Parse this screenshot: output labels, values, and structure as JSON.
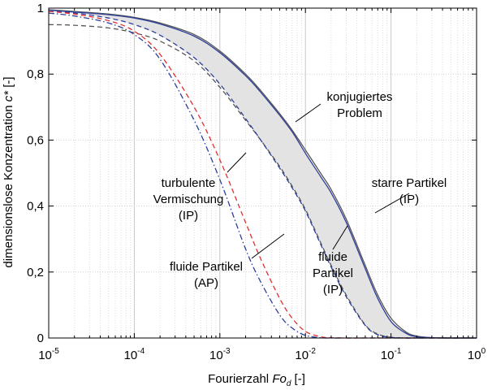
{
  "chart_data": {
    "type": "line",
    "x_scale": "log",
    "xlim": [
      1e-05,
      1
    ],
    "ylim": [
      0,
      1
    ],
    "grid": true,
    "xlabel": {
      "main": "Fourierzahl ",
      "italic": "Fo",
      "sub": "d",
      "unit": " [-]"
    },
    "ylabel": {
      "main": "dimensionslose Konzentration ",
      "italic": "c*",
      "unit": " [-]"
    },
    "x_ticks": [
      {
        "base": "10",
        "exp": "-5"
      },
      {
        "base": "10",
        "exp": "-4"
      },
      {
        "base": "10",
        "exp": "-3"
      },
      {
        "base": "10",
        "exp": "-2"
      },
      {
        "base": "10",
        "exp": "-1"
      },
      {
        "base": "10",
        "exp": "0"
      }
    ],
    "y_ticks": [
      "0",
      "0,2",
      "0,4",
      "0,6",
      "0,8",
      "1"
    ],
    "x": [
      1e-05,
      2e-05,
      5e-05,
      0.0001,
      0.0002,
      0.0005,
      0.001,
      0.002,
      0.003,
      0.005,
      0.007,
      0.01,
      0.015,
      0.02,
      0.03,
      0.05,
      0.07,
      0.1,
      0.15,
      0.2,
      0.3,
      0.5,
      0.7,
      1
    ],
    "series": [
      {
        "key": "starre-ip-upper",
        "style": "solid",
        "color": "#555555",
        "values": [
          0.995,
          0.99,
          0.982,
          0.972,
          0.955,
          0.92,
          0.87,
          0.8,
          0.75,
          0.68,
          0.63,
          0.57,
          0.5,
          0.45,
          0.36,
          0.22,
          0.13,
          0.06,
          0.018,
          0.006,
          0.001,
          0,
          0,
          0
        ]
      },
      {
        "key": "starre-ip",
        "style": "solid",
        "color": "#2c3e9a",
        "values": [
          0.994,
          0.988,
          0.98,
          0.97,
          0.952,
          0.915,
          0.865,
          0.795,
          0.745,
          0.675,
          0.625,
          0.56,
          0.49,
          0.44,
          0.35,
          0.21,
          0.12,
          0.05,
          0.014,
          0.004,
          0.001,
          0,
          0,
          0
        ]
      },
      {
        "key": "fluide-ip-gray",
        "style": "dashed",
        "color": "#555555",
        "values": [
          0.95,
          0.948,
          0.94,
          0.925,
          0.9,
          0.84,
          0.76,
          0.66,
          0.6,
          0.52,
          0.46,
          0.39,
          0.29,
          0.22,
          0.13,
          0.04,
          0.012,
          0.002,
          0,
          0,
          0,
          0,
          0,
          0
        ]
      },
      {
        "key": "fluide-ip-blue",
        "style": "dashed",
        "color": "#2c3e9a",
        "values": [
          0.99,
          0.985,
          0.97,
          0.95,
          0.918,
          0.85,
          0.77,
          0.665,
          0.6,
          0.515,
          0.455,
          0.385,
          0.285,
          0.215,
          0.125,
          0.038,
          0.01,
          0.002,
          0,
          0,
          0,
          0,
          0,
          0
        ]
      },
      {
        "key": "fluide-ap",
        "style": "dashed",
        "color": "#e03030",
        "values": [
          0.99,
          0.982,
          0.962,
          0.93,
          0.86,
          0.7,
          0.54,
          0.35,
          0.24,
          0.12,
          0.06,
          0.02,
          0.004,
          0.001,
          0,
          0,
          0,
          0,
          0,
          0,
          0,
          0,
          0,
          0
        ]
      },
      {
        "key": "turbulente-ip",
        "style": "dashdot",
        "color": "#2c3e9a",
        "values": [
          0.985,
          0.976,
          0.955,
          0.92,
          0.845,
          0.66,
          0.48,
          0.27,
          0.17,
          0.07,
          0.03,
          0.008,
          0.001,
          0,
          0,
          0,
          0,
          0,
          0,
          0,
          0,
          0,
          0,
          0
        ]
      }
    ],
    "annotations": [
      {
        "key": "konjugiert",
        "lines": [
          "konjugiertes",
          "Problem"
        ]
      },
      {
        "key": "starre",
        "lines": [
          "starre Partikel",
          "(IP)"
        ]
      },
      {
        "key": "fluide-ip",
        "lines": [
          "fluide",
          "Partikel",
          "(IP)"
        ]
      },
      {
        "key": "fluide-ap",
        "lines": [
          "fluide Partikel",
          "(AP)"
        ]
      },
      {
        "key": "turbulente",
        "lines": [
          "turbulente",
          "Vermischung",
          "(IP)"
        ]
      }
    ]
  }
}
